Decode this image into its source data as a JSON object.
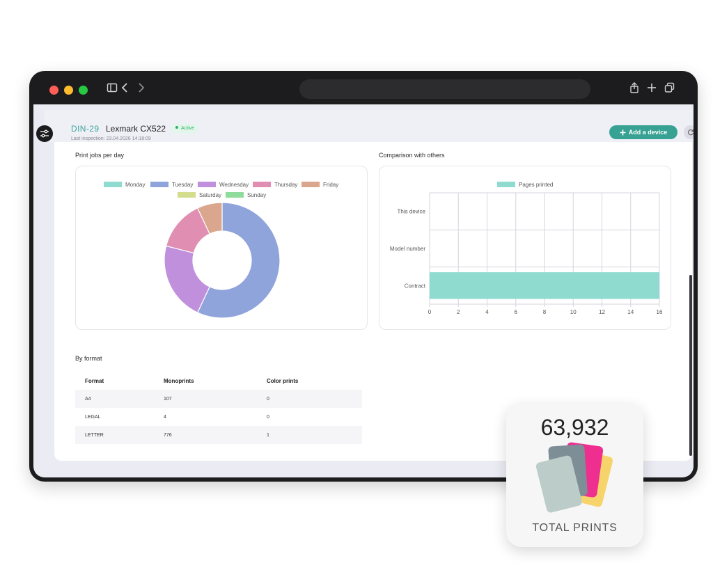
{
  "device": {
    "id": "DIN-29",
    "name": "Lexmark CX522",
    "status": "Active",
    "last_inspection": "Last inspection: 23.04.2026 14:18:09",
    "add_button_label": "Add a device"
  },
  "sections": {
    "print_jobs_title": "Print jobs per day",
    "comparison_title": "Comparison with others",
    "format_title": "By format"
  },
  "colors": {
    "accent": "#37a293",
    "Monday": "#8fdbd0",
    "Tuesday": "#90a4dc",
    "Wednesday": "#c190dd",
    "Thursday": "#e08fb2",
    "Friday": "#dba68e",
    "Saturday": "#d4dd8e",
    "Sunday": "#8fdb9c",
    "pages_printed": "#8fdbd0"
  },
  "chart_data": [
    {
      "type": "pie",
      "subtype": "donut",
      "title": "Print jobs per day",
      "legend_position": "top",
      "categories": [
        "Monday",
        "Tuesday",
        "Wednesday",
        "Thursday",
        "Friday",
        "Saturday",
        "Sunday"
      ],
      "values": [
        0,
        57,
        22,
        14,
        7,
        0,
        0
      ]
    },
    {
      "type": "bar",
      "orientation": "horizontal",
      "title": "Comparison with others",
      "legend_position": "top",
      "categories": [
        "This device",
        "Model number",
        "Contract"
      ],
      "series": [
        {
          "name": "Pages printed",
          "values": [
            0,
            0,
            16
          ]
        }
      ],
      "xlim": [
        0,
        16
      ],
      "xticks": [
        "0",
        "2",
        "4",
        "6",
        "8",
        "10",
        "12",
        "14",
        "16"
      ],
      "grid": true
    }
  ],
  "format_table": {
    "headers": [
      "Format",
      "Monoprints",
      "Color prints"
    ],
    "rows": [
      [
        "A4",
        "107",
        "0"
      ],
      [
        "LEGAL",
        "4",
        "0"
      ],
      [
        "LETTER",
        "776",
        "1"
      ]
    ]
  },
  "total": {
    "value": "63,932",
    "label": "TOTAL PRINTS"
  }
}
